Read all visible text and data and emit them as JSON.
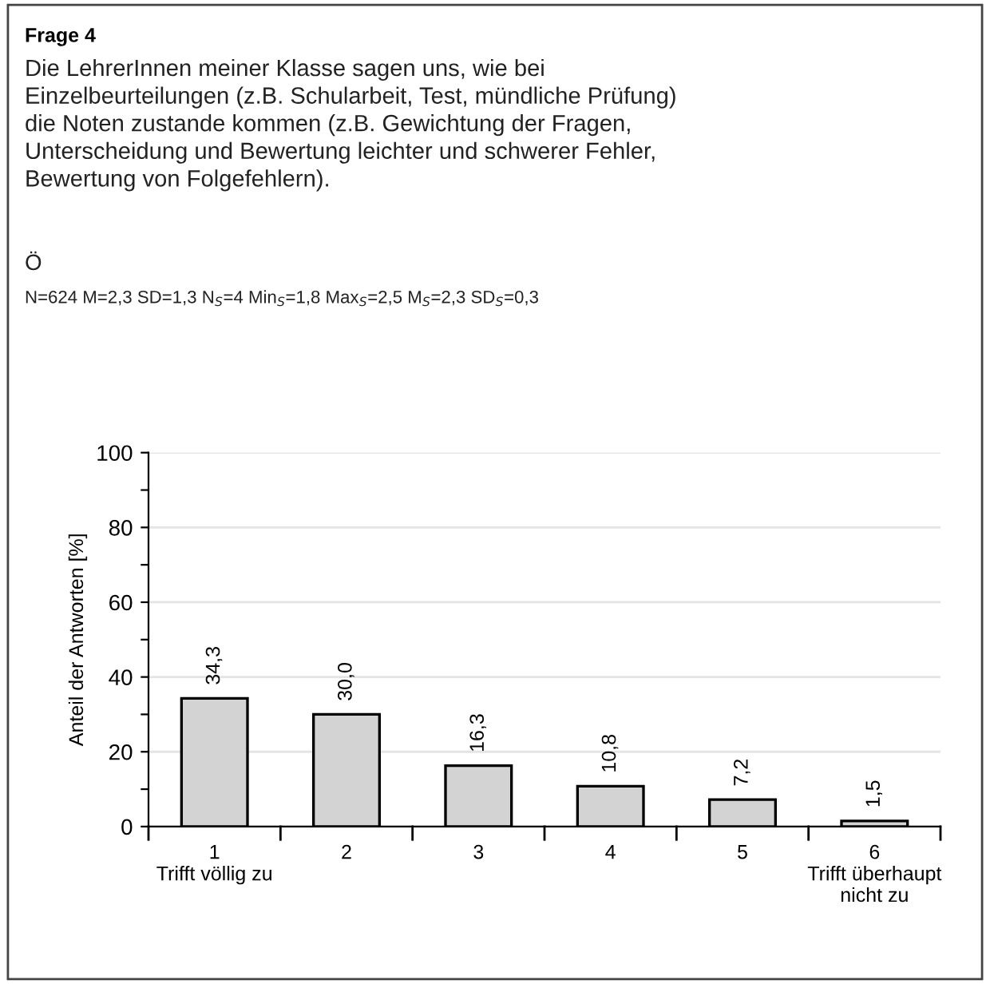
{
  "chart_data": {
    "type": "bar",
    "title": "Frage 4",
    "subtitle": "Die LehrerInnen meiner Klasse sagen uns, wie bei\nEinzelbeurteilungen (z.B. Schularbeit, Test, mündliche Prüfung)\ndie Noten zustande kommen (z.B. Gewichtung der Fragen,\nUnterscheidung und Bewertung leichter und schwerer Fehler,\nBewertung von Folgefehlern).",
    "annotations": [
      "Ö",
      "N=624 M=2,3 SD=1,3 N$_{S}$=4 Min$_{S}$=1,8 Max$_{S}$=2,5 M$_{S}$=2,3 SD$_{S}$=0,3"
    ],
    "ylabel": "Anteil der Antworten [%]",
    "categories": [
      "1\nTrifft völlig zu",
      "2",
      "3",
      "4",
      "5",
      "6\nTrifft überhaupt\nnicht zu"
    ],
    "values": [
      34.3,
      30.0,
      16.3,
      10.8,
      7.2,
      1.5
    ],
    "value_labels": [
      "34,3",
      "30,0",
      "16,3",
      "10,8",
      "7,2",
      "1,5"
    ],
    "color": "#d3d3d3",
    "ylim": [
      0,
      100
    ],
    "yticks": [
      0,
      {
        "value": 10,
        "label": null
      },
      20,
      {
        "value": 30,
        "label": null
      },
      40,
      {
        "value": 50,
        "label": null
      },
      60,
      {
        "value": 70,
        "label": null
      },
      80,
      {
        "value": 90,
        "label": null
      },
      100
    ],
    "grid": "y",
    "legend": false
  }
}
